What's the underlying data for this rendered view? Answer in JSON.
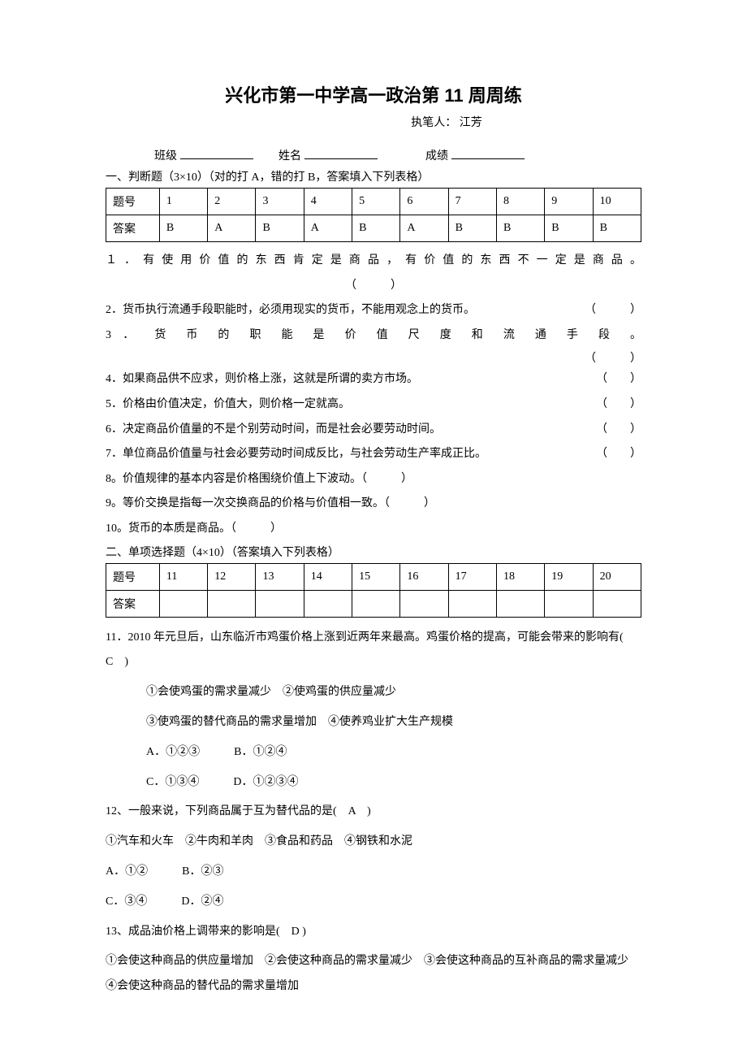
{
  "title": "兴化市第一中学高一政治第 11 周周练",
  "author_label": "执笔人：",
  "author_name": "江芳",
  "header": {
    "class_label": "班级",
    "name_label": "姓名",
    "score_label": "成绩"
  },
  "section1": {
    "heading": "一、判断题（3×10）（对的打 A，错的打 B，答案填入下列表格）",
    "table": {
      "row1": [
        "题号",
        "1",
        "2",
        "3",
        "4",
        "5",
        "6",
        "7",
        "8",
        "9",
        "10"
      ],
      "row2": [
        "答案",
        "B",
        "A",
        "B",
        "A",
        "B",
        "A",
        "B",
        "B",
        "B",
        "B"
      ]
    },
    "q1_text": "１．有使用价值的东西肯定是商品，有价值的东西不一定是商品。",
    "q1_paren": "（　　　）",
    "q2_text": "2．货币执行流通手段职能时，必须用现实的货币，不能用观念上的货币。",
    "q2_paren": "（　　　）",
    "q3_text": "3 ． 货 币 的 职 能 是 价 值 尺 度 和 流 通 手 段 。",
    "q3_paren": "（　　　）",
    "q4_text": "4．如果商品供不应求，则价格上涨，这就是所谓的卖方市场。",
    "q4_paren": "（　　）",
    "q5_text": "5．价格由价值决定，价值大，则价格一定就高。",
    "q5_paren": "（　　）",
    "q6_text": "6．决定商品价值量的不是个别劳动时间，而是社会必要劳动时间。",
    "q6_paren": "（　　）",
    "q7_text": "7．单位商品价值量与社会必要劳动时间成反比，与社会劳动生产率成正比。",
    "q7_paren": "（　　）",
    "q8_text": "8。价值规律的基本内容是价格围绕价值上下波动。（　　　）",
    "q9_text": "9。等价交换是指每一次交换商品的价格与价值相一致。（　　　）",
    "q10_text": "10。货币的本质是商品。（　　　）"
  },
  "section2": {
    "heading": "二、单项选择题（4×10）（答案填入下列表格）",
    "table": {
      "row1": [
        "题号",
        "11",
        "12",
        "13",
        "14",
        "15",
        "16",
        "17",
        "18",
        "19",
        "20"
      ],
      "row2": [
        "答案",
        "",
        "",
        "",
        "",
        "",
        "",
        "",
        "",
        "",
        ""
      ]
    },
    "q11_text": "11．2010 年元旦后，山东临沂市鸡蛋价格上涨到近两年来最高。鸡蛋价格的提高，可能会带来的影响有(　C　)",
    "q11_opt1": "①会使鸡蛋的需求量减少　②使鸡蛋的供应量减少",
    "q11_opt2": "③使鸡蛋的替代商品的需求量增加　④使养鸡业扩大生产规模",
    "q11_ab": "A．①②③　　　B．①②④",
    "q11_cd": "C．①③④　　　D．①②③④",
    "q12_text": "12、一般来说，下列商品属于互为替代品的是(　A　)",
    "q12_opts": "①汽车和火车　②牛肉和羊肉　③食品和药品　④钢铁和水泥",
    "q12_ab": "A．①②　　　B．②③",
    "q12_cd": "C．③④　　　D．②④",
    "q13_text": "13、成品油价格上调带来的影响是(　D )",
    "q13_opts": "①会使这种商品的供应量增加　②会使这种商品的需求量减少　③会使这种商品的互补商品的需求量减少　④会使这种商品的替代品的需求量增加"
  }
}
